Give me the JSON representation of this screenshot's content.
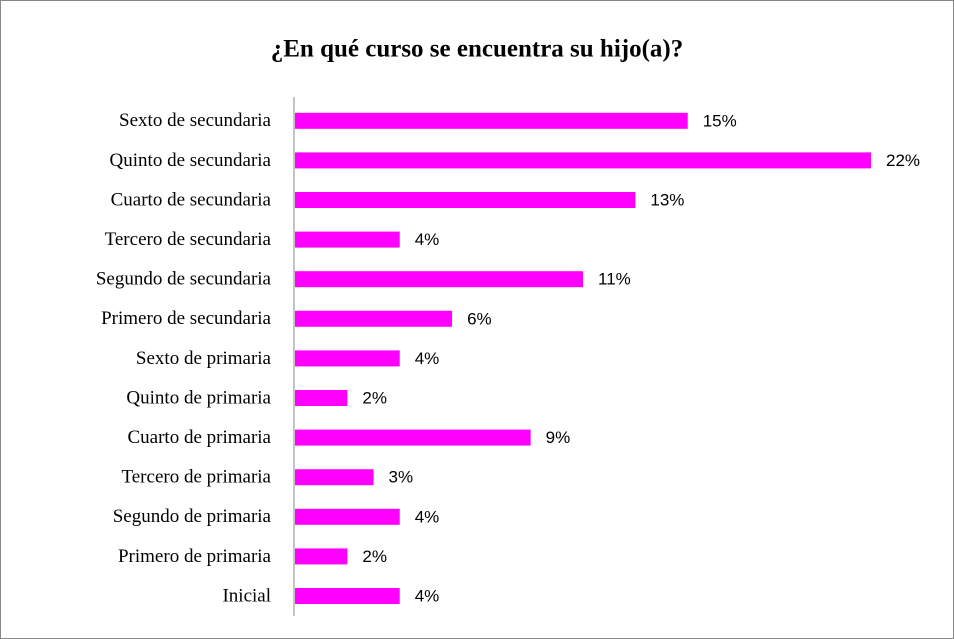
{
  "chart_data": {
    "type": "bar",
    "orientation": "horizontal",
    "title": "¿En qué curso se encuentra su hijo(a)?",
    "categories": [
      "Sexto de secundaria",
      "Quinto de secundaria",
      "Cuarto de secundaria",
      "Tercero de secundaria",
      "Segundo de secundaria",
      "Primero de secundaria",
      "Sexto de primaria",
      "Quinto de primaria",
      "Cuarto de primaria",
      "Tercero de primaria",
      "Segundo de primaria",
      "Primero de primaria",
      "Inicial"
    ],
    "values": [
      15,
      22,
      13,
      4,
      11,
      6,
      4,
      2,
      9,
      3,
      4,
      2,
      4
    ],
    "value_labels": [
      "15%",
      "22%",
      "13%",
      "4%",
      "11%",
      "6%",
      "4%",
      "2%",
      "9%",
      "3%",
      "4%",
      "2%",
      "4%"
    ],
    "color": "#ff00ff"
  }
}
